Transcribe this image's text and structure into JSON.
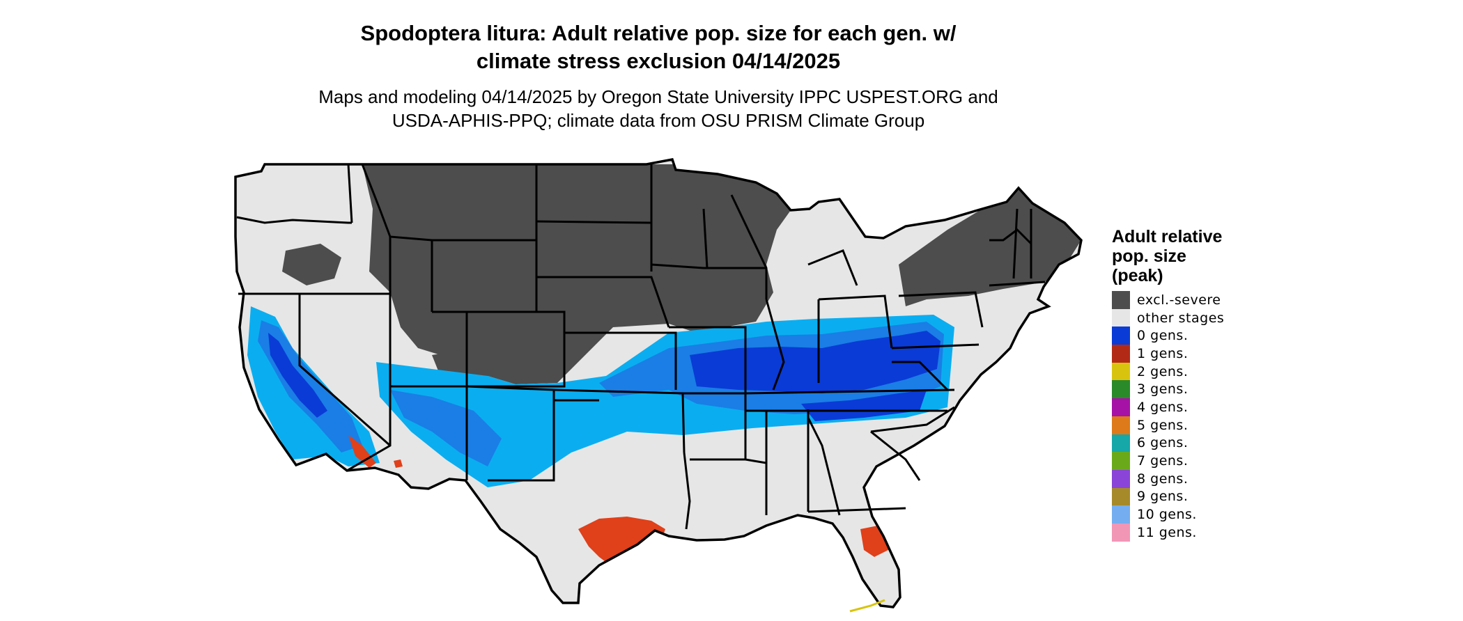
{
  "title_line1": "Spodoptera litura: Adult relative pop. size for each gen. w/",
  "title_line2": "climate stress exclusion 04/14/2025",
  "subtitle_line1": "Maps and modeling 04/14/2025 by Oregon State University IPPC USPEST.ORG and",
  "subtitle_line2": "USDA-APHIS-PPQ; climate data from OSU PRISM Climate Group",
  "legend": {
    "title_line1": "Adult relative",
    "title_line2": "pop. size",
    "title_line3": "(peak)",
    "items": [
      {
        "label": "excl.-severe",
        "color": "#4d4d4d"
      },
      {
        "label": "other stages",
        "color": "#e6e6e6"
      },
      {
        "label": "0 gens.",
        "color": "#0a3bd6"
      },
      {
        "label": "1 gens.",
        "color": "#b22a16"
      },
      {
        "label": "2 gens.",
        "color": "#d8c40e"
      },
      {
        "label": "3 gens.",
        "color": "#2a8a2a"
      },
      {
        "label": "4 gens.",
        "color": "#a612a6"
      },
      {
        "label": "5 gens.",
        "color": "#de7a1a"
      },
      {
        "label": "6 gens.",
        "color": "#16a8a8"
      },
      {
        "label": "7 gens.",
        "color": "#6aaa1a"
      },
      {
        "label": "8 gens.",
        "color": "#8a44d8"
      },
      {
        "label": "9 gens.",
        "color": "#a68a2a"
      },
      {
        "label": "10 gens.",
        "color": "#74aef0"
      },
      {
        "label": "11 gens.",
        "color": "#f296b6"
      }
    ]
  },
  "map_colors": {
    "excluded": "#4d4d4d",
    "other_stages": "#e6e6e6",
    "light_blue": "#0aaef0",
    "mid_blue": "#1a7ee6",
    "dark_blue": "#0a3bd6",
    "orange": "#e0401a",
    "state_lines": "#000000"
  }
}
